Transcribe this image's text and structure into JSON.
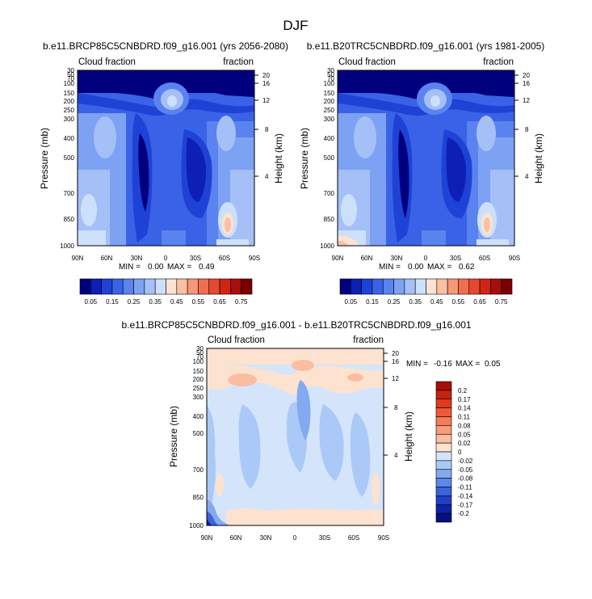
{
  "figure_title": "DJF",
  "panels": [
    {
      "title": "b.e11.BRCP85C5CNBDRD.f09_g16.001 (yrs 2056-2080)",
      "left_label": "Cloud fraction",
      "right_label": "fraction",
      "min_label": "MIN =",
      "min_value": "0.00",
      "max_label": "MAX =",
      "max_value": "0.49"
    },
    {
      "title": "b.e11.B20TRC5CNBDRD.f09_g16.001 (yrs 1981-2005)",
      "left_label": "Cloud fraction",
      "right_label": "fraction",
      "min_label": "MIN =",
      "min_value": "0.00",
      "max_label": "MAX =",
      "max_value": "0.62"
    },
    {
      "title": "b.e11.BRCP85C5CNBDRD.f09_g16.001 - b.e11.B20TRC5CNBDRD.f09_g16.001",
      "left_label": "Cloud fraction",
      "right_label": "fraction",
      "min_label": "MIN =",
      "min_value": "-0.16",
      "max_label": "MAX =",
      "max_value": "0.05"
    }
  ],
  "chart_data": [
    {
      "type": "heatmap",
      "title": "b.e11.BRCP85C5CNBDRD.f09_g16.001 (yrs 2056-2080)",
      "xlabel": "",
      "ylabel": "Pressure (mb)",
      "ylabel_right": "Height (km)",
      "x_ticks": [
        "90N",
        "60N",
        "30N",
        "0",
        "30S",
        "60S",
        "90S"
      ],
      "y_ticks": [
        "30",
        "50",
        "70",
        "100",
        "150",
        "200",
        "250",
        "300",
        "400",
        "500",
        "700",
        "850",
        "1000"
      ],
      "y_right_ticks": [
        "20",
        "16",
        "12",
        "8",
        "4"
      ],
      "y_scale": "log-pressure",
      "min": 0.0,
      "max": 0.49,
      "colorbar_ticks": [
        "0.05",
        "0.15",
        "0.25",
        "0.35",
        "0.45",
        "0.55",
        "0.65",
        "0.75"
      ],
      "colorbar_colors": [
        "#00007f",
        "#0d1fb5",
        "#1f42d6",
        "#3a62e6",
        "#5a83ef",
        "#7da2f3",
        "#a5c0f7",
        "#cde0fb",
        "#fbe3d3",
        "#f9c0a3",
        "#f49878",
        "#ef6e50",
        "#e8482f",
        "#d12414",
        "#a80e0a",
        "#7a0000"
      ]
    },
    {
      "type": "heatmap",
      "title": "b.e11.B20TRC5CNBDRD.f09_g16.001 (yrs 1981-2005)",
      "xlabel": "",
      "ylabel": "Pressure (mb)",
      "ylabel_right": "Height (km)",
      "x_ticks": [
        "90N",
        "60N",
        "30N",
        "0",
        "30S",
        "60S",
        "90S"
      ],
      "y_ticks": [
        "30",
        "50",
        "70",
        "100",
        "150",
        "200",
        "250",
        "300",
        "400",
        "500",
        "700",
        "850",
        "1000"
      ],
      "y_right_ticks": [
        "20",
        "16",
        "12",
        "8",
        "4"
      ],
      "y_scale": "log-pressure",
      "min": 0.0,
      "max": 0.62,
      "colorbar_ticks": [
        "0.05",
        "0.15",
        "0.25",
        "0.35",
        "0.45",
        "0.55",
        "0.65",
        "0.75"
      ]
    },
    {
      "type": "heatmap",
      "title": "b.e11.BRCP85C5CNBDRD.f09_g16.001 - b.e11.B20TRC5CNBDRD.f09_g16.001",
      "xlabel": "",
      "ylabel": "Pressure (mb)",
      "ylabel_right": "Height (km)",
      "x_ticks": [
        "90N",
        "60N",
        "30N",
        "0",
        "30S",
        "60S",
        "90S"
      ],
      "y_ticks": [
        "30",
        "50",
        "70",
        "100",
        "150",
        "200",
        "250",
        "300",
        "400",
        "500",
        "700",
        "850",
        "1000"
      ],
      "y_right_ticks": [
        "20",
        "16",
        "12",
        "8",
        "4"
      ],
      "y_scale": "log-pressure",
      "min": -0.16,
      "max": 0.05,
      "colorbar_ticks": [
        "0.2",
        "0.17",
        "0.14",
        "0.11",
        "0.08",
        "0.05",
        "0.02",
        "0",
        "-0.02",
        "-0.05",
        "-0.08",
        "-0.11",
        "-0.14",
        "-0.17",
        "-0.2"
      ],
      "colorbar_colors": [
        "#a50f0a",
        "#c7220f",
        "#de3b1f",
        "#ee5a38",
        "#f67b56",
        "#f99c7a",
        "#fbbda0",
        "#fde2cf",
        "#d4e5fb",
        "#abc9f6",
        "#83aaf0",
        "#5d87e8",
        "#3a63dc",
        "#2040c8",
        "#0e22a8",
        "#04107f"
      ]
    }
  ]
}
